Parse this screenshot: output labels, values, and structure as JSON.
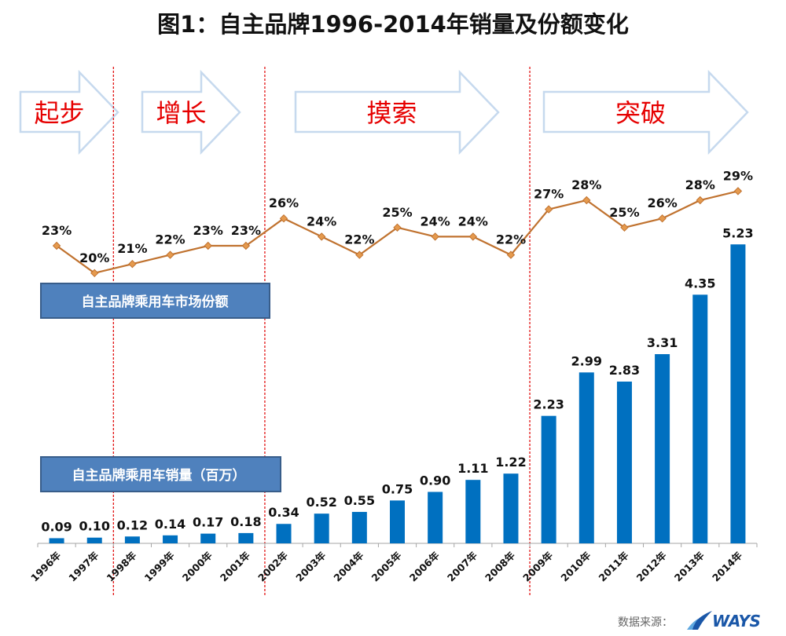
{
  "title": "图1：自主品牌1996-2014年销量及份额变化",
  "phases": [
    {
      "label": "起步",
      "years": [
        "1996年",
        "1997年"
      ]
    },
    {
      "label": "增长",
      "years": [
        "1998年",
        "1999年",
        "2000年",
        "2001年"
      ]
    },
    {
      "label": "摸索",
      "years": [
        "2002年",
        "2003年",
        "2004年",
        "2005年",
        "2006年",
        "2007年",
        "2008年"
      ]
    },
    {
      "label": "突破",
      "years": [
        "2009年",
        "2010年",
        "2011年",
        "2012年",
        "2013年",
        "2014年"
      ]
    }
  ],
  "legend": {
    "share_label": "自主品牌乘用车市场份额",
    "sales_label": "自主品牌乘用车销量（百万）"
  },
  "source": {
    "label": "数据来源：",
    "logo_text": "WAYS"
  },
  "colors": {
    "bar": "#0070c0",
    "line": "#c0722f",
    "marker": "#e59a4e",
    "phase_text": "#e60000",
    "phase_arrow_stroke": "#c6d9ee",
    "divider": "#e00000",
    "legend_box": "#4f81bd",
    "legend_border": "#385d8a"
  },
  "chart_data": {
    "type": "bar",
    "title": "图1：自主品牌1996-2014年销量及份额变化",
    "xlabel": "",
    "ylabel": "",
    "categories": [
      "1996年",
      "1997年",
      "1998年",
      "1999年",
      "2000年",
      "2001年",
      "2002年",
      "2003年",
      "2004年",
      "2005年",
      "2006年",
      "2007年",
      "2008年",
      "2009年",
      "2010年",
      "2011年",
      "2012年",
      "2013年",
      "2014年"
    ],
    "series": [
      {
        "name": "自主品牌乘用车销量（百万）",
        "type": "bar",
        "values": [
          0.09,
          0.1,
          0.12,
          0.14,
          0.17,
          0.18,
          0.34,
          0.52,
          0.55,
          0.75,
          0.9,
          1.11,
          1.22,
          2.23,
          2.99,
          2.83,
          3.31,
          4.35,
          5.23
        ],
        "labels": [
          "0.09",
          "0.10",
          "0.12",
          "0.14",
          "0.17",
          "0.18",
          "0.34",
          "0.52",
          "0.55",
          "0.75",
          "0.90",
          "1.11",
          "1.22",
          "2.23",
          "2.99",
          "2.83",
          "3.31",
          "4.35",
          "5.23"
        ]
      },
      {
        "name": "自主品牌乘用车市场份额",
        "type": "line",
        "values": [
          23,
          20,
          21,
          22,
          23,
          23,
          26,
          24,
          22,
          25,
          24,
          24,
          22,
          27,
          28,
          25,
          26,
          28,
          29
        ],
        "labels": [
          "23%",
          "20%",
          "21%",
          "22%",
          "23%",
          "23%",
          "26%",
          "24%",
          "22%",
          "25%",
          "24%",
          "24%",
          "22%",
          "27%",
          "28%",
          "25%",
          "26%",
          "28%",
          "29%"
        ]
      }
    ],
    "phase_boundaries_after": [
      "1997年",
      "2001年",
      "2008年"
    ],
    "grid": false,
    "legend": "inline-labels"
  }
}
